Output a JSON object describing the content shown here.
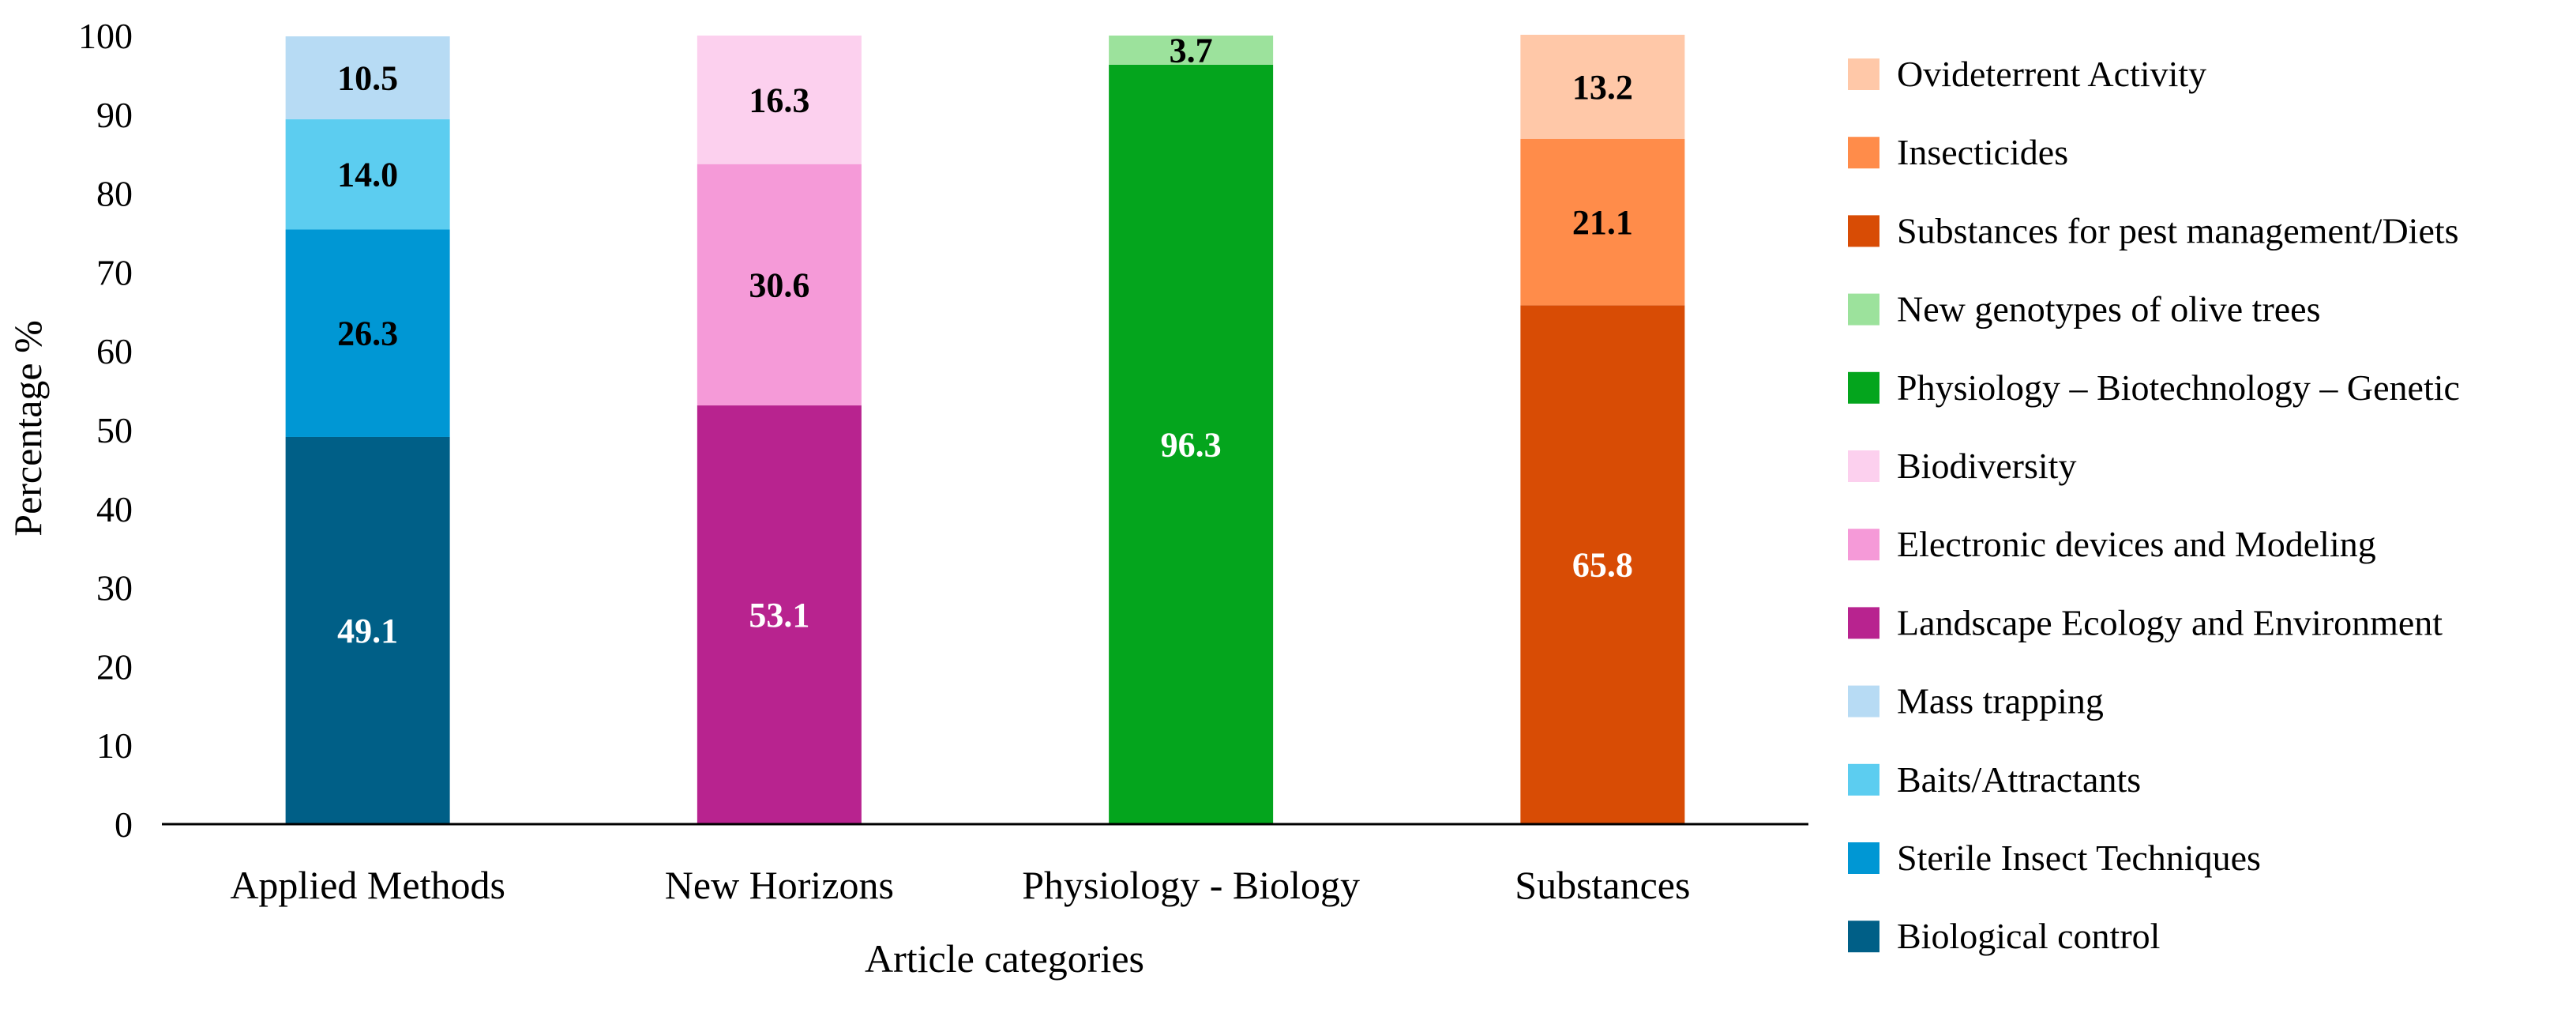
{
  "chart_data": {
    "type": "bar",
    "stacked": true,
    "xlabel": "Article categories",
    "ylabel": "Percentage %",
    "ylim": [
      0,
      100
    ],
    "yticks": [
      0,
      10,
      20,
      30,
      40,
      50,
      60,
      70,
      80,
      90,
      100
    ],
    "categories": [
      "Applied Methods",
      "New Horizons",
      "Physiology - Biology",
      "Substances"
    ],
    "series": [
      {
        "name": "Biological control",
        "color": "#005f87",
        "label_color": "#ffffff",
        "values": [
          49.1,
          0,
          0,
          0
        ]
      },
      {
        "name": "Sterile Insect Techniques",
        "color": "#0097d4",
        "label_color": "#000000",
        "values": [
          26.3,
          0,
          0,
          0
        ]
      },
      {
        "name": "Baits/Attractants",
        "color": "#5ccdf0",
        "label_color": "#000000",
        "values": [
          14.0,
          0,
          0,
          0
        ]
      },
      {
        "name": "Mass trapping",
        "color": "#b7dbf4",
        "label_color": "#000000",
        "values": [
          10.5,
          0,
          0,
          0
        ]
      },
      {
        "name": "Landscape Ecology and Environment",
        "color": "#b8238f",
        "label_color": "#ffffff",
        "values": [
          0,
          53.1,
          0,
          0
        ]
      },
      {
        "name": "Electronic devices and Modeling",
        "color": "#f59ad8",
        "label_color": "#000000",
        "values": [
          0,
          30.6,
          0,
          0
        ]
      },
      {
        "name": "Biodiversity",
        "color": "#fcd0ee",
        "label_color": "#000000",
        "values": [
          0,
          16.3,
          0,
          0
        ]
      },
      {
        "name": "Physiology – Biotechnology – Genetic",
        "color": "#04a51d",
        "label_color": "#ffffff",
        "values": [
          0,
          0,
          96.3,
          0
        ]
      },
      {
        "name": "New genotypes of olive trees",
        "color": "#9ce29c",
        "label_color": "#000000",
        "values": [
          0,
          0,
          3.7,
          0
        ]
      },
      {
        "name": "Substances for pest management/Diets",
        "color": "#d84c05",
        "label_color": "#ffffff",
        "values": [
          0,
          0,
          0,
          65.8
        ]
      },
      {
        "name": "Insecticides",
        "color": "#ff8c4a",
        "label_color": "#000000",
        "values": [
          0,
          0,
          0,
          21.1
        ]
      },
      {
        "name": "Ovideterrent Activity",
        "color": "#ffc8a8",
        "label_color": "#000000",
        "values": [
          0,
          0,
          0,
          13.2
        ]
      }
    ],
    "data_labels": [
      [
        "49.1",
        "26.3",
        "14.0",
        "10.5",
        "",
        "",
        "",
        "",
        "",
        "",
        "",
        ""
      ],
      [
        "",
        "",
        "",
        "",
        "53.1",
        "30.6",
        "16.3",
        "",
        "",
        "",
        "",
        ""
      ],
      [
        "",
        "",
        "",
        "",
        "",
        "",
        "",
        "96.3",
        "3.7",
        "",
        "",
        ""
      ],
      [
        "",
        "",
        "",
        "",
        "",
        "",
        "",
        "",
        "",
        "65.8",
        "21.1",
        "13.2"
      ]
    ],
    "legend_position": "right",
    "legend_order": "reverse",
    "grid": false
  }
}
